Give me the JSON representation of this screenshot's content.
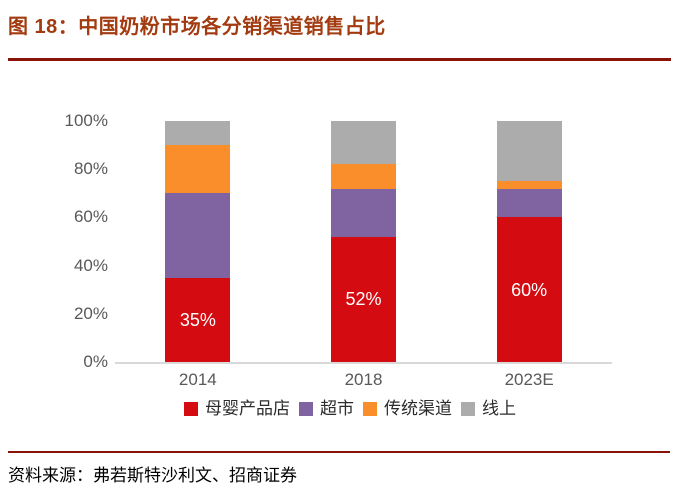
{
  "figure": {
    "title": "图 18：中国奶粉市场各分销渠道销售占比",
    "source": "资料来源：弗若斯特沙利文、招商证券"
  },
  "colors": {
    "title_text": "#A33B10",
    "divider": "#8A1309",
    "axis_text": "#595959",
    "axis_baseline": "#D9D9D9",
    "bar_label_text": "#FFFFFF"
  },
  "chart_data": {
    "type": "bar",
    "stacked": true,
    "title": "中国奶粉市场各分销渠道销售占比",
    "categories": [
      "2014",
      "2018",
      "2023E"
    ],
    "series": [
      {
        "name": "母婴产品店",
        "color": "#D40B10",
        "values": [
          35,
          52,
          60
        ],
        "labels": [
          "35%",
          "52%",
          "60%"
        ]
      },
      {
        "name": "超市",
        "color": "#8064A2",
        "values": [
          35,
          20,
          12
        ],
        "labels": [
          "",
          "",
          ""
        ]
      },
      {
        "name": "传统渠道",
        "color": "#F98E2B",
        "values": [
          20,
          10,
          3
        ],
        "labels": [
          "",
          "",
          ""
        ]
      },
      {
        "name": "线上",
        "color": "#ACACAC",
        "values": [
          10,
          18,
          25
        ],
        "labels": [
          "",
          "",
          ""
        ]
      }
    ],
    "xlabel": "",
    "ylabel": "",
    "ylim": [
      0,
      100
    ],
    "yticks": [
      {
        "value": 100,
        "label": "100%"
      },
      {
        "value": 80,
        "label": "80%"
      },
      {
        "value": 60,
        "label": "60%"
      },
      {
        "value": 40,
        "label": "40%"
      },
      {
        "value": 20,
        "label": "20%"
      },
      {
        "value": 0,
        "label": "0%"
      }
    ],
    "grid": false,
    "legend_position": "bottom"
  }
}
